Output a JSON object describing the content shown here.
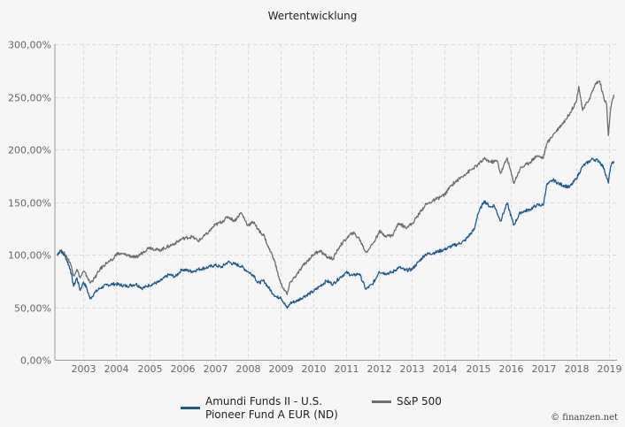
{
  "chart_data": {
    "type": "line",
    "title": "Wertentwicklung",
    "xlabel": "",
    "ylabel": "",
    "xlim": [
      2002.2,
      2019.2
    ],
    "ylim": [
      0,
      300
    ],
    "grid": true,
    "legend_position": "bottom",
    "y_ticks": [
      {
        "value": 0,
        "label": "0,00%"
      },
      {
        "value": 50,
        "label": "50,00%"
      },
      {
        "value": 100,
        "label": "100,00%"
      },
      {
        "value": 150,
        "label": "150,00%"
      },
      {
        "value": 200,
        "label": "200,00%"
      },
      {
        "value": 250,
        "label": "250,00%"
      },
      {
        "value": 300,
        "label": "300,00%"
      }
    ],
    "x_ticks": [
      {
        "value": 2003,
        "label": "2003"
      },
      {
        "value": 2004,
        "label": "2004"
      },
      {
        "value": 2005,
        "label": "2005"
      },
      {
        "value": 2006,
        "label": "2006"
      },
      {
        "value": 2007,
        "label": "2007"
      },
      {
        "value": 2008,
        "label": "2008"
      },
      {
        "value": 2009,
        "label": "2009"
      },
      {
        "value": 2010,
        "label": "2010"
      },
      {
        "value": 2011,
        "label": "2011"
      },
      {
        "value": 2012,
        "label": "2012"
      },
      {
        "value": 2013,
        "label": "2013"
      },
      {
        "value": 2014,
        "label": "2014"
      },
      {
        "value": 2015,
        "label": "2015"
      },
      {
        "value": 2016,
        "label": "2016"
      },
      {
        "value": 2017,
        "label": "2017"
      },
      {
        "value": 2018,
        "label": "2018"
      },
      {
        "value": 2019,
        "label": "2019"
      }
    ],
    "series": [
      {
        "name": "Amundi Funds II - U.S. Pioneer Fund A EUR (ND)",
        "color": "#1a5a96",
        "points": [
          [
            2002.2,
            100
          ],
          [
            2002.3,
            104
          ],
          [
            2002.45,
            98
          ],
          [
            2002.6,
            86
          ],
          [
            2002.7,
            70
          ],
          [
            2002.8,
            78
          ],
          [
            2002.9,
            66
          ],
          [
            2003.0,
            74
          ],
          [
            2003.1,
            68
          ],
          [
            2003.2,
            58
          ],
          [
            2003.35,
            64
          ],
          [
            2003.5,
            68
          ],
          [
            2003.7,
            71
          ],
          [
            2003.9,
            72
          ],
          [
            2004.0,
            72
          ],
          [
            2004.3,
            70
          ],
          [
            2004.6,
            72
          ],
          [
            2004.8,
            68
          ],
          [
            2005.0,
            71
          ],
          [
            2005.3,
            74
          ],
          [
            2005.6,
            81
          ],
          [
            2005.8,
            79
          ],
          [
            2006.0,
            86
          ],
          [
            2006.3,
            84
          ],
          [
            2006.5,
            86
          ],
          [
            2006.8,
            88
          ],
          [
            2007.0,
            90
          ],
          [
            2007.2,
            88
          ],
          [
            2007.4,
            93
          ],
          [
            2007.6,
            91
          ],
          [
            2007.8,
            89
          ],
          [
            2008.0,
            84
          ],
          [
            2008.2,
            80
          ],
          [
            2008.3,
            73
          ],
          [
            2008.5,
            75
          ],
          [
            2008.6,
            70
          ],
          [
            2008.8,
            62
          ],
          [
            2008.9,
            59
          ],
          [
            2009.0,
            60
          ],
          [
            2009.2,
            49
          ],
          [
            2009.3,
            54
          ],
          [
            2009.5,
            56
          ],
          [
            2009.7,
            60
          ],
          [
            2010.0,
            65
          ],
          [
            2010.2,
            70
          ],
          [
            2010.4,
            75
          ],
          [
            2010.6,
            72
          ],
          [
            2010.8,
            78
          ],
          [
            2011.0,
            83
          ],
          [
            2011.2,
            80
          ],
          [
            2011.4,
            82
          ],
          [
            2011.6,
            67
          ],
          [
            2011.8,
            72
          ],
          [
            2011.9,
            77
          ],
          [
            2012.0,
            84
          ],
          [
            2012.2,
            82
          ],
          [
            2012.4,
            83
          ],
          [
            2012.6,
            88
          ],
          [
            2012.8,
            85
          ],
          [
            2013.0,
            86
          ],
          [
            2013.2,
            93
          ],
          [
            2013.4,
            100
          ],
          [
            2013.7,
            102
          ],
          [
            2014.0,
            105
          ],
          [
            2014.2,
            108
          ],
          [
            2014.4,
            110
          ],
          [
            2014.6,
            113
          ],
          [
            2014.9,
            124
          ],
          [
            2015.0,
            138
          ],
          [
            2015.2,
            151
          ],
          [
            2015.4,
            145
          ],
          [
            2015.5,
            147
          ],
          [
            2015.7,
            132
          ],
          [
            2015.9,
            149
          ],
          [
            2016.1,
            128
          ],
          [
            2016.3,
            140
          ],
          [
            2016.6,
            143
          ],
          [
            2016.8,
            147
          ],
          [
            2017.0,
            147
          ],
          [
            2017.1,
            166
          ],
          [
            2017.3,
            171
          ],
          [
            2017.5,
            167
          ],
          [
            2017.8,
            164
          ],
          [
            2018.0,
            172
          ],
          [
            2018.2,
            184
          ],
          [
            2018.5,
            191
          ],
          [
            2018.7,
            189
          ],
          [
            2018.85,
            182
          ],
          [
            2018.98,
            168
          ],
          [
            2019.05,
            184
          ],
          [
            2019.15,
            189
          ]
        ]
      },
      {
        "name": "S&P 500",
        "color": "#6e6e70",
        "points": [
          [
            2002.2,
            100
          ],
          [
            2002.3,
            104
          ],
          [
            2002.45,
            100
          ],
          [
            2002.6,
            92
          ],
          [
            2002.7,
            80
          ],
          [
            2002.8,
            86
          ],
          [
            2002.9,
            78
          ],
          [
            2003.0,
            84
          ],
          [
            2003.1,
            80
          ],
          [
            2003.2,
            73
          ],
          [
            2003.35,
            78
          ],
          [
            2003.5,
            86
          ],
          [
            2003.7,
            92
          ],
          [
            2003.9,
            95
          ],
          [
            2004.0,
            101
          ],
          [
            2004.3,
            100
          ],
          [
            2004.6,
            97
          ],
          [
            2004.8,
            102
          ],
          [
            2005.0,
            107
          ],
          [
            2005.3,
            104
          ],
          [
            2005.6,
            108
          ],
          [
            2005.8,
            111
          ],
          [
            2006.0,
            115
          ],
          [
            2006.3,
            117
          ],
          [
            2006.5,
            113
          ],
          [
            2006.8,
            121
          ],
          [
            2007.0,
            128
          ],
          [
            2007.2,
            131
          ],
          [
            2007.4,
            136
          ],
          [
            2007.6,
            132
          ],
          [
            2007.8,
            140
          ],
          [
            2008.0,
            128
          ],
          [
            2008.2,
            131
          ],
          [
            2008.3,
            124
          ],
          [
            2008.5,
            118
          ],
          [
            2008.6,
            109
          ],
          [
            2008.8,
            96
          ],
          [
            2008.9,
            84
          ],
          [
            2009.0,
            73
          ],
          [
            2009.2,
            62
          ],
          [
            2009.3,
            74
          ],
          [
            2009.5,
            81
          ],
          [
            2009.7,
            90
          ],
          [
            2010.0,
            100
          ],
          [
            2010.2,
            104
          ],
          [
            2010.4,
            98
          ],
          [
            2010.6,
            96
          ],
          [
            2010.8,
            108
          ],
          [
            2011.0,
            115
          ],
          [
            2011.2,
            121
          ],
          [
            2011.4,
            115
          ],
          [
            2011.6,
            102
          ],
          [
            2011.8,
            110
          ],
          [
            2011.9,
            115
          ],
          [
            2012.0,
            122
          ],
          [
            2012.2,
            118
          ],
          [
            2012.4,
            118
          ],
          [
            2012.6,
            130
          ],
          [
            2012.8,
            126
          ],
          [
            2013.0,
            129
          ],
          [
            2013.4,
            147
          ],
          [
            2013.7,
            152
          ],
          [
            2014.0,
            157
          ],
          [
            2014.2,
            166
          ],
          [
            2014.6,
            176
          ],
          [
            2015.0,
            185
          ],
          [
            2015.2,
            191
          ],
          [
            2015.4,
            188
          ],
          [
            2015.6,
            189
          ],
          [
            2015.7,
            177
          ],
          [
            2015.9,
            192
          ],
          [
            2016.1,
            168
          ],
          [
            2016.3,
            182
          ],
          [
            2016.6,
            188
          ],
          [
            2016.8,
            194
          ],
          [
            2017.0,
            192
          ],
          [
            2017.1,
            205
          ],
          [
            2017.3,
            214
          ],
          [
            2017.7,
            229
          ],
          [
            2018.0,
            245
          ],
          [
            2018.08,
            260
          ],
          [
            2018.2,
            237
          ],
          [
            2018.4,
            248
          ],
          [
            2018.6,
            263
          ],
          [
            2018.72,
            265
          ],
          [
            2018.85,
            248
          ],
          [
            2018.93,
            243
          ],
          [
            2018.98,
            213
          ],
          [
            2019.05,
            239
          ],
          [
            2019.15,
            252
          ]
        ]
      }
    ]
  },
  "legend": {
    "items": [
      {
        "label": "Amundi Funds II - U.S. Pioneer Fund A EUR (ND)",
        "color": "#1a5a96"
      },
      {
        "label": "S&P 500",
        "color": "#6e6e70"
      }
    ]
  },
  "credit": "© finanzen.net"
}
